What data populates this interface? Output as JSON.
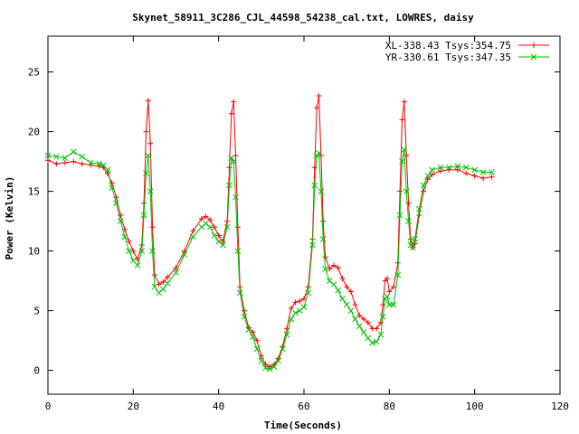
{
  "chart_data": {
    "type": "line",
    "title": "Skynet_58911_3C286_CJL_44598_54238_cal.txt, LOWRES, daisy",
    "xlabel": "Time(Seconds)",
    "ylabel": "Power (Kelvin)",
    "xlim": [
      0,
      120
    ],
    "ylim": [
      -2,
      28
    ],
    "xticks": [
      0,
      20,
      40,
      60,
      80,
      100,
      120
    ],
    "yticks": [
      0,
      5,
      10,
      15,
      20,
      25
    ],
    "legend_position": "top-right",
    "grid": false,
    "series": [
      {
        "name": "XL-338.43 Tsys:354.75",
        "color": "#ff0000",
        "marker": "plus",
        "points": [
          [
            0,
            17.6
          ],
          [
            2,
            17.3
          ],
          [
            4,
            17.4
          ],
          [
            6,
            17.5
          ],
          [
            8,
            17.3
          ],
          [
            10,
            17.2
          ],
          [
            12,
            17.1
          ],
          [
            13,
            17.0
          ],
          [
            14,
            16.5
          ],
          [
            15,
            15.7
          ],
          [
            16,
            14.5
          ],
          [
            17,
            13.0
          ],
          [
            18,
            11.8
          ],
          [
            19,
            10.8
          ],
          [
            20,
            10.0
          ],
          [
            21,
            9.3
          ],
          [
            22,
            10.5
          ],
          [
            22.5,
            14.0
          ],
          [
            23,
            20.0
          ],
          [
            23.5,
            22.6
          ],
          [
            24,
            19.0
          ],
          [
            24.5,
            12.0
          ],
          [
            25,
            8.0
          ],
          [
            26,
            7.2
          ],
          [
            27,
            7.4
          ],
          [
            28,
            7.8
          ],
          [
            30,
            8.6
          ],
          [
            32,
            10.0
          ],
          [
            34,
            11.7
          ],
          [
            36,
            12.7
          ],
          [
            37,
            12.9
          ],
          [
            38,
            12.6
          ],
          [
            39,
            12.0
          ],
          [
            40,
            11.3
          ],
          [
            41,
            10.8
          ],
          [
            42,
            12.5
          ],
          [
            42.5,
            17.0
          ],
          [
            43,
            21.5
          ],
          [
            43.5,
            22.5
          ],
          [
            44,
            18.0
          ],
          [
            44.5,
            12.0
          ],
          [
            45,
            7.0
          ],
          [
            46,
            5.0
          ],
          [
            47,
            3.6
          ],
          [
            48,
            3.2
          ],
          [
            49,
            2.5
          ],
          [
            50,
            1.2
          ],
          [
            51,
            0.5
          ],
          [
            52,
            0.3
          ],
          [
            53,
            0.5
          ],
          [
            54,
            1.0
          ],
          [
            55,
            2.0
          ],
          [
            56,
            3.5
          ],
          [
            57,
            5.2
          ],
          [
            58,
            5.7
          ],
          [
            59,
            5.8
          ],
          [
            60,
            6.0
          ],
          [
            61,
            7.0
          ],
          [
            62,
            11.0
          ],
          [
            62.5,
            17.0
          ],
          [
            63,
            22.0
          ],
          [
            63.5,
            23.0
          ],
          [
            64,
            18.0
          ],
          [
            64.5,
            12.5
          ],
          [
            65,
            9.5
          ],
          [
            66,
            8.5
          ],
          [
            67,
            8.8
          ],
          [
            68,
            8.6
          ],
          [
            69,
            7.7
          ],
          [
            70,
            7.0
          ],
          [
            71,
            6.6
          ],
          [
            72,
            5.5
          ],
          [
            73,
            4.6
          ],
          [
            74,
            4.3
          ],
          [
            75,
            4.0
          ],
          [
            76,
            3.5
          ],
          [
            77,
            3.5
          ],
          [
            78,
            4.0
          ],
          [
            78.5,
            5.5
          ],
          [
            79,
            7.5
          ],
          [
            79.5,
            7.7
          ],
          [
            80,
            6.6
          ],
          [
            81,
            7.0
          ],
          [
            82,
            9.0
          ],
          [
            82.5,
            15.0
          ],
          [
            83,
            21.0
          ],
          [
            83.5,
            22.5
          ],
          [
            84,
            18.0
          ],
          [
            84.5,
            14.0
          ],
          [
            85,
            11.0
          ],
          [
            85.5,
            10.3
          ],
          [
            86,
            10.6
          ],
          [
            87,
            13.0
          ],
          [
            88,
            15.0
          ],
          [
            89,
            16.0
          ],
          [
            90,
            16.4
          ],
          [
            92,
            16.7
          ],
          [
            94,
            16.8
          ],
          [
            96,
            16.8
          ],
          [
            98,
            16.5
          ],
          [
            100,
            16.3
          ],
          [
            102,
            16.1
          ],
          [
            104,
            16.2
          ]
        ]
      },
      {
        "name": "YR-330.61 Tsys:347.35",
        "color": "#00c000",
        "marker": "cross",
        "points": [
          [
            0,
            18.0
          ],
          [
            2,
            17.9
          ],
          [
            4,
            17.8
          ],
          [
            6,
            18.3
          ],
          [
            8,
            17.9
          ],
          [
            10,
            17.4
          ],
          [
            12,
            17.3
          ],
          [
            13,
            17.2
          ],
          [
            14,
            16.8
          ],
          [
            15,
            15.3
          ],
          [
            16,
            14.0
          ],
          [
            17,
            12.5
          ],
          [
            18,
            11.2
          ],
          [
            19,
            10.0
          ],
          [
            20,
            9.2
          ],
          [
            21,
            8.8
          ],
          [
            22,
            10.0
          ],
          [
            22.5,
            13.0
          ],
          [
            23,
            16.5
          ],
          [
            23.5,
            18.0
          ],
          [
            24,
            15.0
          ],
          [
            24.5,
            10.0
          ],
          [
            25,
            7.0
          ],
          [
            26,
            6.5
          ],
          [
            27,
            6.8
          ],
          [
            28,
            7.3
          ],
          [
            30,
            8.2
          ],
          [
            32,
            9.7
          ],
          [
            34,
            11.2
          ],
          [
            36,
            12.0
          ],
          [
            37,
            12.3
          ],
          [
            38,
            12.0
          ],
          [
            39,
            11.3
          ],
          [
            40,
            10.8
          ],
          [
            41,
            10.5
          ],
          [
            42,
            12.0
          ],
          [
            42.5,
            15.5
          ],
          [
            43,
            17.8
          ],
          [
            43.5,
            17.5
          ],
          [
            44,
            14.5
          ],
          [
            44.5,
            10.0
          ],
          [
            45,
            6.5
          ],
          [
            46,
            4.5
          ],
          [
            47,
            3.4
          ],
          [
            48,
            2.8
          ],
          [
            49,
            1.8
          ],
          [
            50,
            0.8
          ],
          [
            51,
            0.2
          ],
          [
            52,
            0.1
          ],
          [
            53,
            0.3
          ],
          [
            54,
            0.8
          ],
          [
            55,
            1.8
          ],
          [
            56,
            3.0
          ],
          [
            57,
            4.3
          ],
          [
            58,
            4.8
          ],
          [
            59,
            5.0
          ],
          [
            60,
            5.3
          ],
          [
            61,
            6.5
          ],
          [
            62,
            10.5
          ],
          [
            62.5,
            15.5
          ],
          [
            63,
            18.0
          ],
          [
            63.5,
            18.2
          ],
          [
            64,
            15.0
          ],
          [
            64.5,
            11.0
          ],
          [
            65,
            8.5
          ],
          [
            66,
            7.5
          ],
          [
            67,
            7.2
          ],
          [
            68,
            6.7
          ],
          [
            69,
            6.0
          ],
          [
            70,
            5.5
          ],
          [
            71,
            5.0
          ],
          [
            72,
            4.3
          ],
          [
            73,
            3.7
          ],
          [
            74,
            3.2
          ],
          [
            75,
            2.7
          ],
          [
            76,
            2.3
          ],
          [
            77,
            2.4
          ],
          [
            78,
            3.0
          ],
          [
            78.5,
            4.5
          ],
          [
            79,
            6.0
          ],
          [
            79.5,
            6.2
          ],
          [
            80,
            5.5
          ],
          [
            81,
            5.5
          ],
          [
            82,
            8.0
          ],
          [
            82.5,
            13.0
          ],
          [
            83,
            17.5
          ],
          [
            83.5,
            18.5
          ],
          [
            84,
            15.0
          ],
          [
            84.5,
            12.5
          ],
          [
            85,
            10.5
          ],
          [
            85.5,
            10.3
          ],
          [
            86,
            11.0
          ],
          [
            87,
            13.5
          ],
          [
            88,
            15.5
          ],
          [
            89,
            16.3
          ],
          [
            90,
            16.8
          ],
          [
            92,
            17.0
          ],
          [
            94,
            17.0
          ],
          [
            96,
            17.1
          ],
          [
            98,
            17.0
          ],
          [
            100,
            16.8
          ],
          [
            102,
            16.6
          ],
          [
            104,
            16.6
          ]
        ]
      }
    ]
  }
}
